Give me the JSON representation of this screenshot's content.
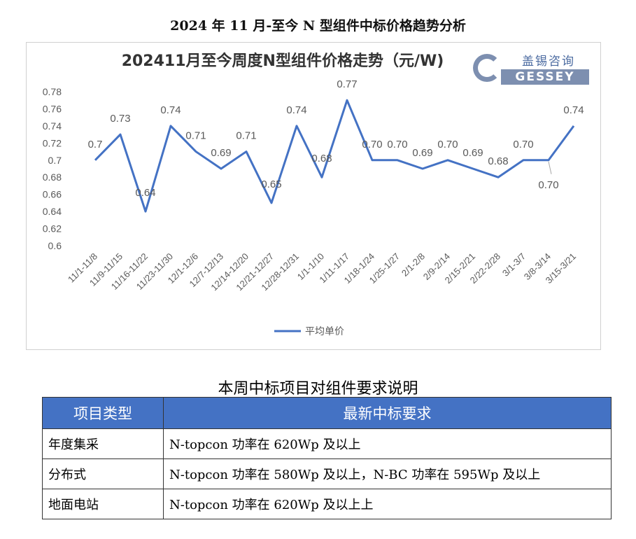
{
  "doc_title": "2024 年 11 月-至今 N 型组件中标价格趋势分析",
  "logo": {
    "cn": "盖锡咨询",
    "en": "GESSEY"
  },
  "chart_data": {
    "type": "line",
    "title": "202411月至今周度N型组件价格走势（元/W)",
    "xlabel": "",
    "ylabel": "",
    "ylim": [
      0.6,
      0.78
    ],
    "yticks": [
      "0.78",
      "0.76",
      "0.74",
      "0.72",
      "0.7",
      "0.68",
      "0.66",
      "0.64",
      "0.62",
      "0.6"
    ],
    "categories": [
      "11/1-11/8",
      "11/9-11/15",
      "11/16-11/22",
      "11/23-11/30",
      "12/1-12/6",
      "12/7-12/13",
      "12/14-12/20",
      "12/21-12/27",
      "12/28-12/31",
      "1/1-1/10",
      "1/11-1/17",
      "1/18-1/24",
      "1/25-1/27",
      "2/1-2/8",
      "2/9-2/14",
      "2/15-2/21",
      "2/22-2/28",
      "3/1-3/7",
      "3/8-3/14",
      "3/15-3/21"
    ],
    "series": [
      {
        "name": "平均单价",
        "color": "#4472c4",
        "values": [
          0.7,
          0.73,
          0.64,
          0.74,
          0.71,
          0.69,
          0.71,
          0.65,
          0.74,
          0.68,
          0.77,
          0.7,
          0.7,
          0.69,
          0.7,
          0.69,
          0.68,
          0.7,
          0.7,
          0.74
        ],
        "labels": [
          "0.7",
          "0.73",
          "0.64",
          "0.74",
          "0.71",
          "0.69",
          "0.71",
          "0.65",
          "0.74",
          "0.68",
          "0.77",
          "0.70",
          "0.70",
          "0.69",
          "0.70",
          "0.69",
          "0.68",
          "0.70",
          "0.70",
          "0.74"
        ]
      }
    ],
    "legend": "bottom",
    "grid": false
  },
  "table": {
    "caption": "本周中标项目对组件要求说明",
    "headers": [
      "项目类型",
      "最新中标要求"
    ],
    "rows": [
      [
        "年度集采",
        "N-topcon 功率在 620Wp 及以上"
      ],
      [
        "分布式",
        "N-topcon 功率在 580Wp 及以上，N-BC 功率在 595Wp 及以上"
      ],
      [
        "地面电站",
        "N-topcon 功率在 620Wp 及以上上"
      ]
    ]
  }
}
